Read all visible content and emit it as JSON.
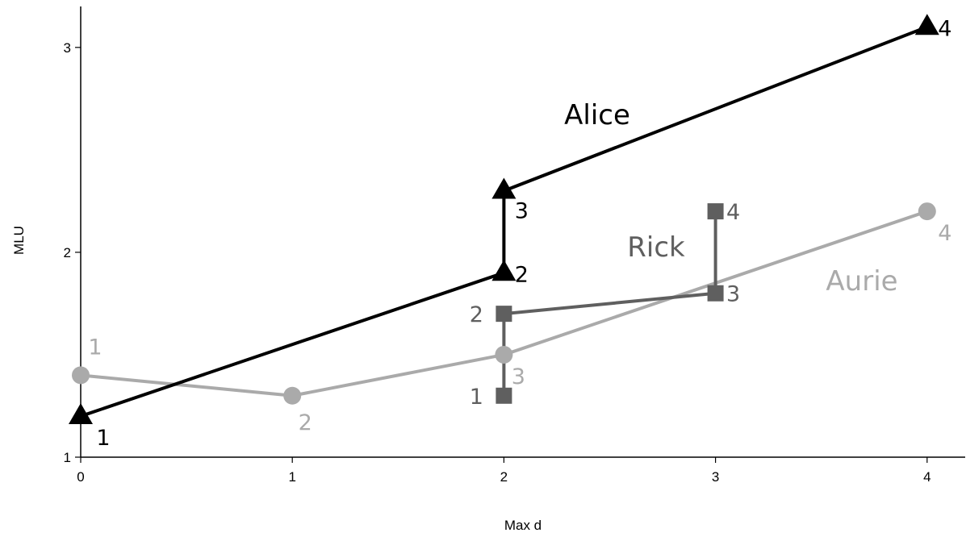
{
  "chart_data": {
    "type": "line",
    "title": "",
    "xlabel": "Max d",
    "ylabel": "MLU",
    "xlim": [
      0,
      4.18
    ],
    "ylim": [
      1,
      3.2
    ],
    "x_ticks": [
      "0",
      "1",
      "2",
      "3",
      "4"
    ],
    "y_ticks": [
      "1",
      "2",
      "3"
    ],
    "grid": false,
    "legend": "none (series labeled directly on the plot)",
    "series": [
      {
        "name": "Alice",
        "color": "#000000",
        "marker": "triangle",
        "points": [
          {
            "x": 0,
            "y": 1.2,
            "label": "1"
          },
          {
            "x": 2,
            "y": 1.9,
            "label": "2"
          },
          {
            "x": 2,
            "y": 2.3,
            "label": "3"
          },
          {
            "x": 4,
            "y": 3.1,
            "label": "4"
          }
        ]
      },
      {
        "name": "Rick",
        "color": "#5f5f5f",
        "marker": "square",
        "points": [
          {
            "x": 2,
            "y": 1.3,
            "label": "1"
          },
          {
            "x": 2,
            "y": 1.7,
            "label": "2"
          },
          {
            "x": 3,
            "y": 1.8,
            "label": "3"
          },
          {
            "x": 3,
            "y": 2.2,
            "label": "4"
          }
        ]
      },
      {
        "name": "Aurie",
        "color": "#aaaaaa",
        "marker": "circle",
        "points": [
          {
            "x": 0,
            "y": 1.4,
            "label": "1"
          },
          {
            "x": 1,
            "y": 1.3,
            "label": "2"
          },
          {
            "x": 2,
            "y": 1.5,
            "label": "3"
          },
          {
            "x": 4,
            "y": 2.2,
            "label": "4"
          }
        ]
      }
    ]
  }
}
